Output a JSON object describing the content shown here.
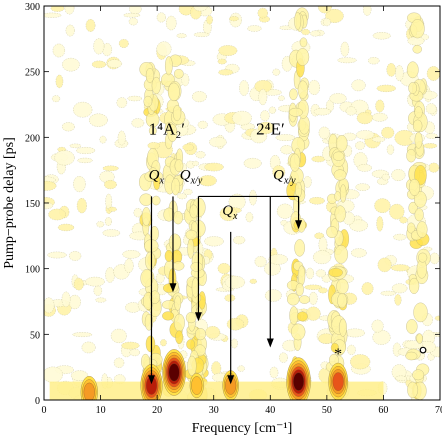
{
  "chart_data": {
    "type": "heatmap",
    "title": "",
    "xlabel": "Frequency [cm⁻¹]",
    "ylabel": "Pump−probe delay [ps]",
    "xlim": [
      0,
      70
    ],
    "ylim": [
      0,
      300
    ],
    "x_ticks": [
      0,
      10,
      20,
      30,
      40,
      50,
      60,
      70
    ],
    "y_ticks": [
      0,
      50,
      100,
      150,
      200,
      250,
      300
    ],
    "x_tick_labels": [
      "0",
      "10",
      "20",
      "30",
      "40",
      "50",
      "60",
      "70"
    ],
    "y_tick_labels": [
      "0",
      "50",
      "100",
      "150",
      "200",
      "250",
      "300"
    ],
    "colors": {
      "low": "#fffce0",
      "mid": "#ffe14a",
      "high": "#e8541a",
      "peak": "#5a0000",
      "background": "#ffffff"
    },
    "peaks": [
      {
        "frequency": 8,
        "delay": 0,
        "intensity": 0.55
      },
      {
        "frequency": 19,
        "delay": 5,
        "intensity": 0.85
      },
      {
        "frequency": 23,
        "delay": 15,
        "intensity": 0.95
      },
      {
        "frequency": 27,
        "delay": 5,
        "intensity": 0.35
      },
      {
        "frequency": 33,
        "delay": 5,
        "intensity": 0.5
      },
      {
        "frequency": 45,
        "delay": 8,
        "intensity": 1.0
      },
      {
        "frequency": 52,
        "delay": 8,
        "intensity": 0.7
      }
    ],
    "bands": [
      {
        "frequency": 19,
        "delay_max": 260,
        "intensity": 0.35
      },
      {
        "frequency": 23,
        "delay_max": 260,
        "intensity": 0.45
      },
      {
        "frequency": 27,
        "delay_max": 150,
        "intensity": 0.3
      },
      {
        "frequency": 45,
        "delay_max": 300,
        "intensity": 0.35
      },
      {
        "frequency": 52,
        "delay_max": 200,
        "intensity": 0.2
      },
      {
        "frequency": 66,
        "delay_max": 300,
        "intensity": 0.2
      }
    ],
    "annotations": {
      "group1_label": "1⁴A₂′",
      "group2_label": "2⁴E′",
      "mode_labels": [
        {
          "text": "Q",
          "sub": "x",
          "frequency": 18.5,
          "delay": 168
        },
        {
          "text": "Q",
          "sub": "x/y",
          "frequency": 24,
          "delay": 168
        },
        {
          "text": "Q",
          "sub": "x",
          "frequency": 31.5,
          "delay": 141
        },
        {
          "text": "Q",
          "sub": "x/y",
          "frequency": 40.5,
          "delay": 168
        }
      ],
      "arrows": [
        {
          "frequency": 19,
          "from_delay": 155,
          "to_delay": 12
        },
        {
          "frequency": 22.8,
          "from_delay": 155,
          "to_delay": 82
        },
        {
          "frequency": 27.3,
          "from_delay": 155,
          "to_delay": 60
        },
        {
          "frequency": 33,
          "from_delay": 128,
          "to_delay": 12
        },
        {
          "frequency": 40,
          "from_delay": 155,
          "to_delay": 40
        },
        {
          "frequency": 45,
          "from_delay": 155,
          "to_delay": 130
        }
      ],
      "bracket": {
        "from_frequency": 27.3,
        "to_frequency": 45,
        "delay": 155
      },
      "star": {
        "text": "*",
        "frequency": 52,
        "delay": 35
      },
      "circle": {
        "frequency": 67,
        "delay": 38
      }
    }
  }
}
